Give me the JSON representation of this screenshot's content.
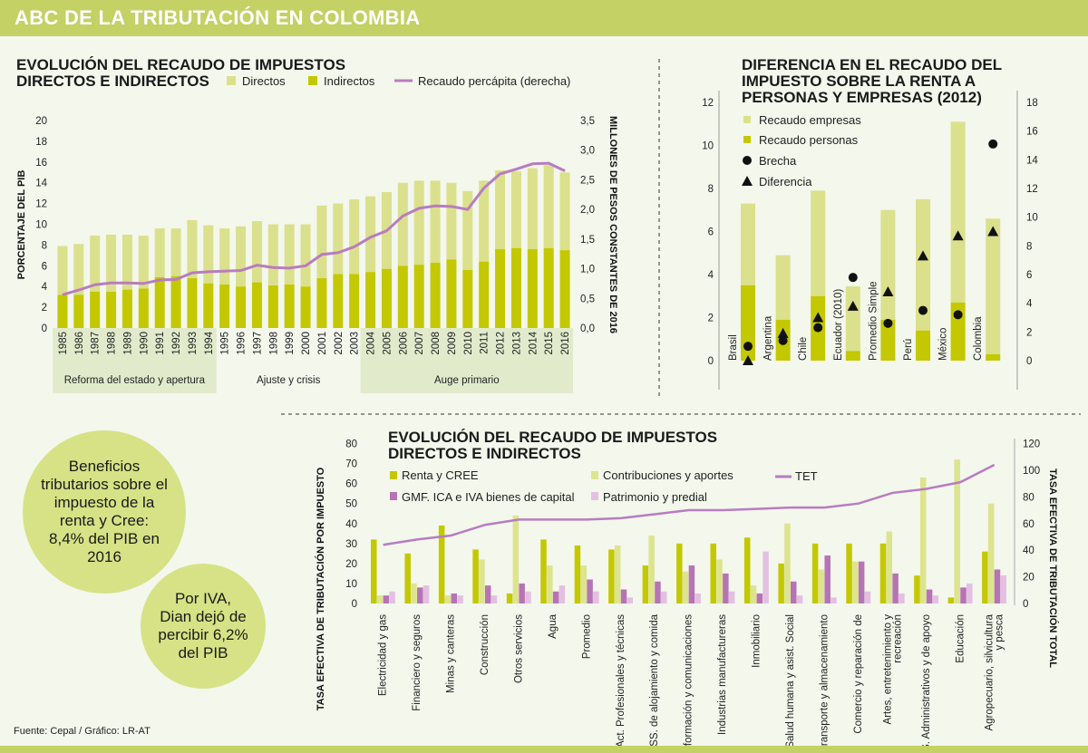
{
  "header": {
    "title": "ABC DE LA TRIBUTACIÓN EN COLOMBIA"
  },
  "colors": {
    "directos": "#dbe08c",
    "indirectos": "#c3c800",
    "line": "#b87cc0",
    "renta": "#c3c800",
    "contribuciones": "#dde48e",
    "gmf": "#b674b4",
    "patrimonio": "#e3c0e2",
    "brand": "#c3d165"
  },
  "bubbles": [
    {
      "text": "Beneficios tributarios sobre el impuesto de la renta y Cree: 8,4% del PIB en 2016"
    },
    {
      "text": "Por IVA, Dian dejó de percibir 6,2% del PIB"
    }
  ],
  "source": "Fuente: Cepal / Gráfico: LR-AT",
  "chart_data": [
    {
      "type": "bar",
      "stacked": true,
      "title": [
        "EVOLUCIÓN DEL RECAUDO DE IMPUESTOS",
        "DIRECTOS E INDIRECTOS"
      ],
      "ylabel": "PORCENTAJE DEL PIB",
      "ylabel_right": "MILLONES DE PESOS CONSTANTES DE 2016",
      "ylim": [
        0,
        20
      ],
      "ylim_right": [
        0,
        3.5
      ],
      "yticks": [
        "0",
        "2",
        "4",
        "6",
        "8",
        "10",
        "12",
        "14",
        "16",
        "18",
        "20"
      ],
      "yticks_right": [
        "0,0",
        "0,5",
        "1,0",
        "1,5",
        "2,0",
        "2,5",
        "3,0",
        "3,5"
      ],
      "categories": [
        "1985",
        "1986",
        "1987",
        "1988",
        "1989",
        "1990",
        "1991",
        "1992",
        "1993",
        "1994",
        "1995",
        "1996",
        "1997",
        "1998",
        "1999",
        "2000",
        "2001",
        "2002",
        "2003",
        "2004",
        "2005",
        "2006",
        "2007",
        "2008",
        "2009",
        "2010",
        "2011",
        "2012",
        "2013",
        "2014",
        "2015",
        "2016"
      ],
      "series": [
        {
          "name": "Indirectos",
          "values": [
            3.2,
            3.2,
            3.5,
            3.5,
            3.7,
            3.8,
            4.9,
            5.0,
            4.8,
            4.3,
            4.2,
            4.0,
            4.4,
            4.1,
            4.2,
            4.0,
            4.8,
            5.2,
            5.2,
            5.4,
            5.7,
            6.0,
            6.1,
            6.3,
            6.6,
            5.6,
            6.4,
            7.6,
            7.7,
            7.6,
            7.7,
            7.5
          ]
        },
        {
          "name": "Directos",
          "values": [
            4.7,
            4.9,
            5.4,
            5.5,
            5.3,
            5.1,
            4.7,
            4.6,
            5.6,
            5.6,
            5.4,
            5.8,
            5.9,
            5.9,
            5.8,
            6.0,
            7.0,
            6.8,
            7.2,
            7.3,
            7.4,
            8.0,
            8.1,
            7.9,
            7.4,
            7.6,
            7.8,
            7.6,
            7.4,
            7.8,
            8.0,
            7.5
          ]
        },
        {
          "name": "Recaudo percápita (derecha)",
          "type": "line",
          "axis": "right",
          "values": [
            0.56,
            0.64,
            0.73,
            0.76,
            0.76,
            0.75,
            0.81,
            0.82,
            0.93,
            0.95,
            0.96,
            0.97,
            1.06,
            1.02,
            1.01,
            1.05,
            1.24,
            1.27,
            1.37,
            1.53,
            1.64,
            1.89,
            2.02,
            2.06,
            2.05,
            2.0,
            2.36,
            2.6,
            2.68,
            2.77,
            2.78,
            2.65
          ]
        }
      ],
      "legend_order": [
        "Directos",
        "Indirectos",
        "Recaudo percápita (derecha)"
      ],
      "periods": [
        {
          "label": "Reforma del estado y apertura",
          "from": "1985",
          "to": "1994",
          "shaded": true
        },
        {
          "label": "Ajuste y crisis",
          "from": "1995",
          "to": "2003",
          "shaded": false
        },
        {
          "label": "Auge primario",
          "from": "2004",
          "to": "2016",
          "shaded": true
        }
      ]
    },
    {
      "type": "bar",
      "stacked": true,
      "title": [
        "DIFERENCIA EN EL RECAUDO DEL",
        "IMPUESTO SOBRE LA RENTA A",
        "PERSONAS Y EMPRESAS (2012)"
      ],
      "ylim": [
        0,
        12
      ],
      "ylim_right": [
        0,
        18
      ],
      "yticks": [
        "0",
        "2",
        "4",
        "6",
        "8",
        "10",
        "12"
      ],
      "yticks_right": [
        "0",
        "2",
        "4",
        "6",
        "8",
        "10",
        "12",
        "14",
        "16",
        "18"
      ],
      "categories": [
        "Brasil",
        "Argentina",
        "Chile",
        "Ecuador (2010)",
        "Promedio Simple",
        "Perú",
        "México",
        "Colombia"
      ],
      "series": [
        {
          "name": "Recaudo personas",
          "values": [
            3.5,
            1.9,
            3.0,
            0.45,
            1.9,
            1.4,
            2.7,
            0.3
          ]
        },
        {
          "name": "Recaudo empresas",
          "values": [
            3.8,
            3.0,
            4.9,
            3.0,
            5.1,
            6.1,
            8.4,
            6.3
          ]
        },
        {
          "name": "Brecha",
          "type": "scatter",
          "marker": "circle",
          "axis": "right",
          "values": [
            1.0,
            1.4,
            2.3,
            5.8,
            2.6,
            3.5,
            3.2,
            15.1
          ]
        },
        {
          "name": "Diferencia",
          "type": "scatter",
          "marker": "triangle",
          "axis": "right",
          "values": [
            0.0,
            1.9,
            3.0,
            3.8,
            4.8,
            7.3,
            8.7,
            9.0
          ]
        }
      ],
      "legend_order": [
        "Recaudo empresas",
        "Recaudo personas",
        "Brecha",
        "Diferencia"
      ]
    },
    {
      "type": "bar",
      "grouped": true,
      "title": [
        "EVOLUCIÓN DEL RECAUDO DE IMPUESTOS",
        "DIRECTOS E INDIRECTOS"
      ],
      "ylabel": "TASA EFECTIVA DE TRIBUTACIÓN POR IMPUESTO",
      "ylabel_right": "TASA EFECTIVA DE TRIBUTACIÓN TOTAL",
      "ylim": [
        0,
        80
      ],
      "ylim_right": [
        0,
        120
      ],
      "yticks": [
        "0",
        "10",
        "20",
        "30",
        "40",
        "50",
        "60",
        "70",
        "80"
      ],
      "yticks_right": [
        "0",
        "20",
        "40",
        "60",
        "80",
        "100",
        "120"
      ],
      "categories": [
        "Electricidad y gas",
        "Financiero y seguros",
        "Minas y canteras",
        "Construcción",
        "Otros servicios",
        "Agua",
        "Promedio",
        "Act. Profesionales y técnicas",
        "SS. de alojamiento y comida",
        "Información y comunicaciones",
        "Industrias manufactureras",
        "Inmobiliario",
        "Salud humana y asist. Social",
        "Transporte y almacenamiento",
        "Comercio y reparación de",
        "Artes, entretenimiento y\nrecreación",
        "SS. Administrativos y de apoyo",
        "Educación",
        "Agropecuario, silvicultura\ny pesca"
      ],
      "series": [
        {
          "name": "Renta y CREE",
          "values": [
            32,
            25,
            39,
            27,
            5,
            32,
            29,
            27,
            19,
            30,
            30,
            33,
            20,
            30,
            30,
            30,
            14,
            3,
            26
          ]
        },
        {
          "name": "Contribuciones y aportes",
          "values": [
            4,
            10,
            4,
            22,
            44,
            19,
            19,
            29,
            34,
            16,
            22,
            9,
            40,
            17,
            21,
            36,
            63,
            72,
            50
          ]
        },
        {
          "name": "GMF. ICA e IVA bienes de capital",
          "values": [
            4,
            8,
            5,
            9,
            10,
            6,
            12,
            7,
            11,
            19,
            15,
            5,
            11,
            24,
            21,
            15,
            7,
            8,
            17
          ]
        },
        {
          "name": "Patrimonio y predial",
          "values": [
            6,
            9,
            4,
            4,
            6,
            9,
            6,
            3,
            6,
            5,
            6,
            26,
            4,
            3,
            6,
            5,
            4,
            10,
            14
          ]
        },
        {
          "name": "TET",
          "type": "line",
          "axis": "right",
          "values": [
            44,
            48,
            51,
            59,
            63,
            63,
            63,
            64,
            67,
            70,
            70,
            71,
            72,
            72,
            75,
            83,
            86,
            91,
            104
          ]
        }
      ],
      "legend_order": [
        "Renta y CREE",
        "Contribuciones y aportes",
        "TET",
        "GMF. ICA e IVA bienes de capital",
        "Patrimonio y predial"
      ]
    }
  ]
}
